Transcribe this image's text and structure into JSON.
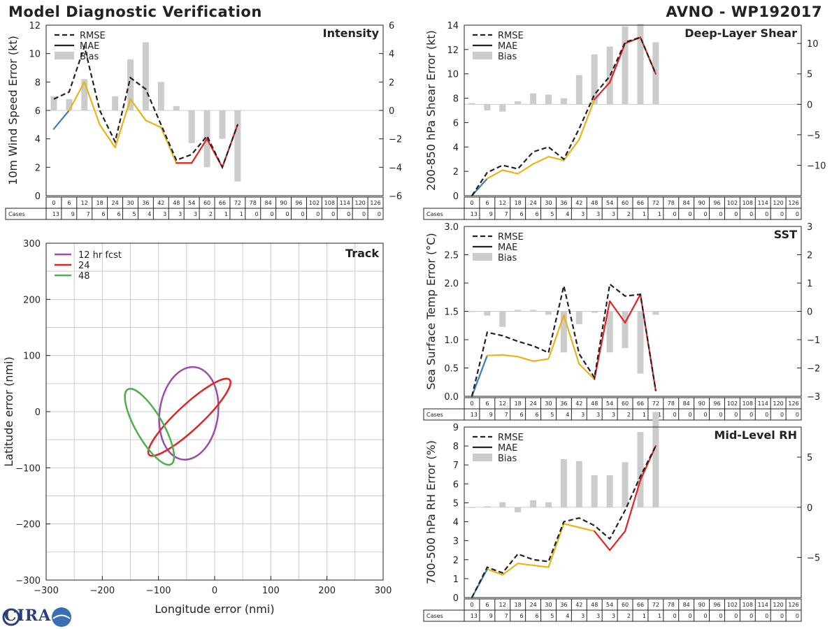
{
  "title_left": "Model Diagnostic Verification",
  "title_right": "AVNO - WP192017",
  "logo_text": "CIRA",
  "legend_labels": {
    "rmse": "RMSE",
    "mae": "MAE",
    "bias": "Bias"
  },
  "colors": {
    "early": "#3a7fb5",
    "mid": "#e8b418",
    "late": "#e02424",
    "rmse": "#222222",
    "bias": "#cccccc",
    "track_12": "#9b4ea8",
    "track_24": "#e02424",
    "track_48": "#4caf50"
  },
  "cases_label": "Cases",
  "lead_times": [
    0,
    6,
    12,
    18,
    24,
    30,
    36,
    42,
    48,
    54,
    60,
    66,
    72,
    78,
    84,
    90,
    96,
    102,
    108,
    114,
    120,
    126
  ],
  "cases": [
    13,
    9,
    7,
    6,
    6,
    5,
    4,
    3,
    3,
    3,
    2,
    1,
    1,
    0,
    0,
    0,
    0,
    0,
    0,
    0,
    0,
    0
  ],
  "chart_data": [
    {
      "type": "line",
      "panel": "intensity",
      "title": "Intensity",
      "ylabel": "10m Wind Speed Error (kt)",
      "ylim": [
        0,
        12
      ],
      "yticks": [
        0,
        2,
        4,
        6,
        8,
        10,
        12
      ],
      "y2lim": [
        -6,
        6
      ],
      "y2ticks": [
        -6,
        -4,
        -2,
        0,
        2,
        4,
        6
      ],
      "x": [
        0,
        6,
        12,
        18,
        24,
        30,
        36,
        42,
        48,
        54,
        60,
        66,
        72
      ],
      "series": [
        {
          "name": "RMSE",
          "values": [
            6.8,
            7.3,
            10.5,
            6.0,
            3.8,
            8.3,
            7.5,
            5.0,
            2.5,
            2.9,
            4.2,
            2.0,
            5.0
          ]
        },
        {
          "name": "MAE",
          "values": [
            4.7,
            6.0,
            8.0,
            5.0,
            3.4,
            6.8,
            5.3,
            4.8,
            2.3,
            2.3,
            4.0,
            2.0,
            5.0
          ]
        }
      ],
      "bias": [
        1.0,
        0.8,
        2.2,
        0.0,
        1.0,
        3.6,
        4.8,
        2.0,
        0.3,
        -2.3,
        -4.0,
        -2.0,
        -5.0
      ]
    },
    {
      "type": "line",
      "panel": "shear",
      "title": "Deep-Layer Shear",
      "ylabel": "200-850 hPa Shear Error (kt)",
      "ylim": [
        0,
        14
      ],
      "yticks": [
        0,
        2,
        4,
        6,
        8,
        10,
        12,
        14
      ],
      "y2lim": [
        -15,
        13
      ],
      "y2ticks": [
        -10,
        -5,
        0,
        5,
        10
      ],
      "x": [
        0,
        6,
        12,
        18,
        24,
        30,
        36,
        42,
        48,
        54,
        60,
        66,
        72
      ],
      "series": [
        {
          "name": "RMSE",
          "values": [
            0.0,
            1.9,
            2.5,
            2.2,
            3.6,
            4.0,
            3.0,
            5.5,
            8.3,
            9.8,
            12.6,
            13.0,
            10.0
          ]
        },
        {
          "name": "MAE",
          "values": [
            0.0,
            1.4,
            2.1,
            1.8,
            2.6,
            3.2,
            2.9,
            4.6,
            7.9,
            9.3,
            12.5,
            13.0,
            10.0
          ]
        }
      ],
      "bias": [
        0.2,
        -1.0,
        -1.2,
        0.5,
        1.8,
        1.6,
        1.0,
        4.8,
        8.2,
        9.5,
        12.8,
        13.2,
        10.2
      ]
    },
    {
      "type": "line",
      "panel": "sst",
      "title": "SST",
      "ylabel": "Sea Surface Temp Error (°C)",
      "ylim": [
        0.0,
        3.0
      ],
      "yticks": [
        0.0,
        0.5,
        1.0,
        1.5,
        2.0,
        2.5,
        3.0
      ],
      "y2lim": [
        -3,
        3
      ],
      "y2ticks": [
        -3,
        -2,
        -1,
        0,
        1,
        2,
        3
      ],
      "x": [
        0,
        6,
        12,
        18,
        24,
        30,
        36,
        42,
        48,
        54,
        60,
        66,
        72
      ],
      "series": [
        {
          "name": "RMSE",
          "values": [
            0.0,
            1.13,
            1.07,
            0.97,
            0.89,
            0.77,
            1.95,
            0.75,
            0.33,
            1.98,
            1.77,
            1.8,
            0.1
          ]
        },
        {
          "name": "MAE",
          "values": [
            0.0,
            0.72,
            0.73,
            0.7,
            0.62,
            0.66,
            1.43,
            0.57,
            0.3,
            1.68,
            1.3,
            1.8,
            0.1
          ]
        }
      ],
      "bias": [
        0.0,
        -0.15,
        -0.55,
        0.05,
        0.05,
        -0.12,
        -1.45,
        -0.45,
        -0.05,
        -1.45,
        -1.3,
        -2.2,
        -0.12
      ]
    },
    {
      "type": "line",
      "panel": "rh",
      "title": "Mid-Level RH",
      "ylabel": "700-500 hPa RH Error (%)",
      "ylim": [
        0,
        9
      ],
      "yticks": [
        0,
        1,
        2,
        3,
        4,
        5,
        6,
        7,
        8,
        9
      ],
      "y2lim": [
        -9,
        8
      ],
      "y2ticks": [
        -5,
        0,
        5
      ],
      "x": [
        0,
        6,
        12,
        18,
        24,
        30,
        36,
        42,
        48,
        54,
        60,
        66,
        72
      ],
      "series": [
        {
          "name": "RMSE",
          "values": [
            0.0,
            1.6,
            1.3,
            2.3,
            2.0,
            1.9,
            4.0,
            4.2,
            3.8,
            3.1,
            4.6,
            6.4,
            8.0
          ]
        },
        {
          "name": "MAE",
          "values": [
            0.0,
            1.5,
            1.2,
            1.8,
            1.7,
            1.6,
            3.9,
            3.7,
            3.5,
            2.5,
            3.5,
            6.2,
            8.0
          ]
        }
      ],
      "bias": [
        0.0,
        0.1,
        0.5,
        -0.5,
        0.7,
        0.5,
        4.8,
        4.6,
        3.2,
        3.2,
        4.5,
        7.5,
        9.5
      ]
    },
    {
      "type": "scatter",
      "panel": "track",
      "title": "Track",
      "xlabel": "Longitude error (nmi)",
      "ylabel": "Latitude error (nmi)",
      "xlim": [
        -300,
        300
      ],
      "ylim": [
        -300,
        300
      ],
      "ticks": [
        -300,
        -200,
        -100,
        0,
        100,
        200,
        300
      ],
      "ellipses": [
        {
          "name": "12 hr fcst",
          "cx": -46,
          "cy": -3,
          "rx": 52,
          "ry": 83,
          "angle": 8
        },
        {
          "name": "24",
          "cx": -45,
          "cy": -10,
          "rx": 98,
          "ry": 22,
          "angle": -43
        },
        {
          "name": "48",
          "cx": -116,
          "cy": -27,
          "rx": 77,
          "ry": 24,
          "angle": 60
        }
      ]
    }
  ]
}
